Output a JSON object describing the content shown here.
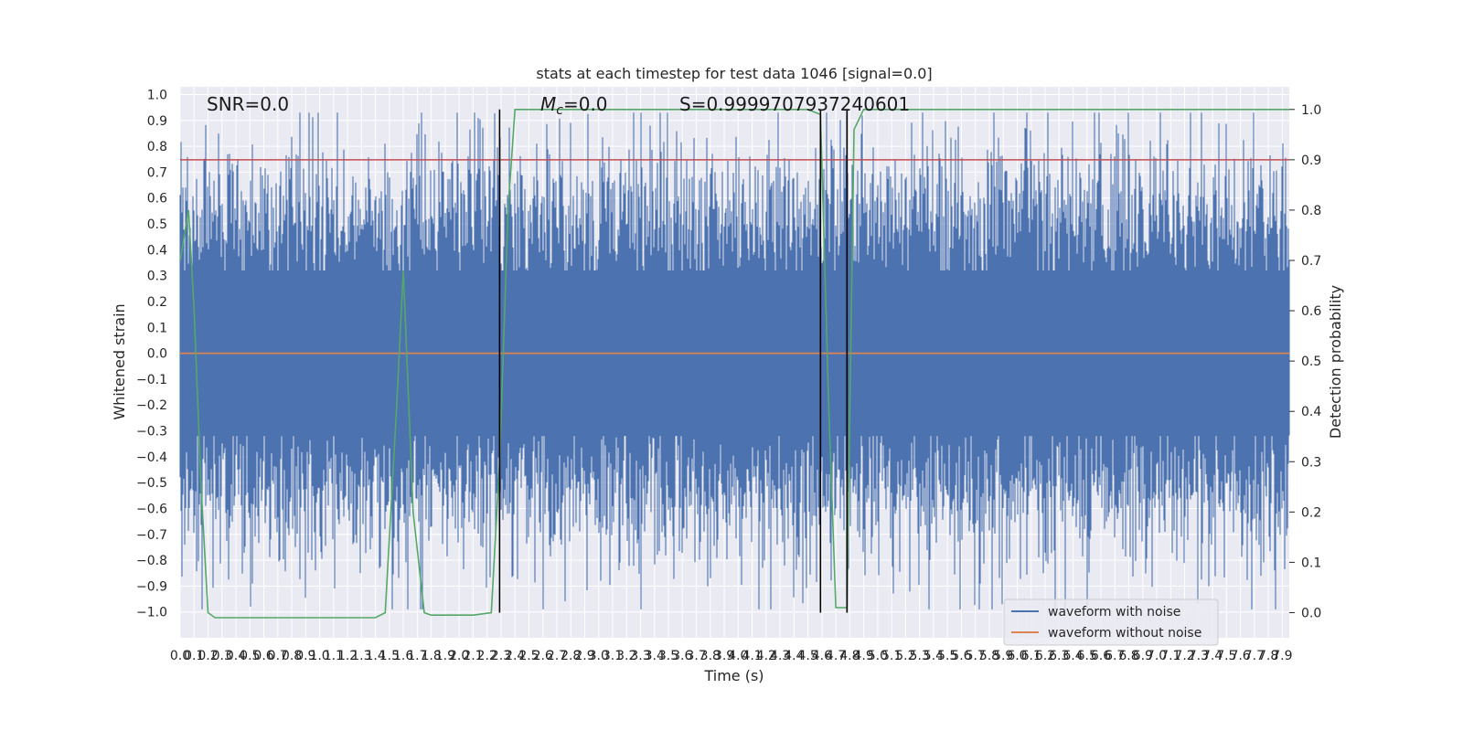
{
  "chart_data": {
    "type": "line",
    "title": "stats at each timestep for test data 1046 [signal=0.0]",
    "xlabel": "Time (s)",
    "ylabel": "Whitened strain",
    "y2label": "Detection probability",
    "xlim": [
      0.0,
      7.95
    ],
    "ylim": [
      -1.1,
      1.03
    ],
    "y2lim": [
      -0.05,
      1.045
    ],
    "x_ticks": [
      "0.0",
      "0.1",
      "0.2",
      "0.3",
      "0.4",
      "0.5",
      "0.6",
      "0.7",
      "0.8",
      "0.9",
      "1.0",
      "1.1",
      "1.2",
      "1.3",
      "1.4",
      "1.5",
      "1.6",
      "1.7",
      "1.8",
      "1.9",
      "2.0",
      "2.1",
      "2.2",
      "2.3",
      "2.4",
      "2.5",
      "2.6",
      "2.7",
      "2.8",
      "2.9",
      "3.0",
      "3.1",
      "3.2",
      "3.3",
      "3.4",
      "3.5",
      "3.6",
      "3.7",
      "3.8",
      "3.9",
      "4.0",
      "4.1",
      "4.2",
      "4.3",
      "4.4",
      "4.5",
      "4.6",
      "4.7",
      "4.8",
      "4.9",
      "5.0",
      "5.1",
      "5.2",
      "5.3",
      "5.4",
      "5.5",
      "5.6",
      "5.7",
      "5.8",
      "5.9",
      "6.0",
      "6.1",
      "6.2",
      "6.3",
      "6.4",
      "6.5",
      "6.6",
      "6.7",
      "6.8",
      "6.9",
      "7.0",
      "7.1",
      "7.2",
      "7.3",
      "7.4",
      "7.5",
      "7.6",
      "7.7",
      "7.8",
      "7.9"
    ],
    "y_ticks": [
      "1.0",
      "0.9",
      "0.8",
      "0.7",
      "0.6",
      "0.5",
      "0.4",
      "0.3",
      "0.2",
      "0.1",
      "0.0",
      "−0.1",
      "−0.2",
      "−0.3",
      "−0.4",
      "−0.5",
      "−0.6",
      "−0.7",
      "−0.8",
      "−0.9",
      "−1.0"
    ],
    "y2_ticks": [
      "1.0",
      "0.9",
      "0.8",
      "0.7",
      "0.6",
      "0.5",
      "0.4",
      "0.3",
      "0.2",
      "0.1",
      "0.0"
    ],
    "noise_amplitude": 0.3,
    "threshold": 0.9,
    "vlines": [
      2.29,
      4.59,
      4.78
    ],
    "detection_probability": {
      "x": [
        0.0,
        0.06,
        0.1,
        0.15,
        0.2,
        0.25,
        0.3,
        1.0,
        1.4,
        1.47,
        1.55,
        1.6,
        1.67,
        1.75,
        1.8,
        2.1,
        2.23,
        2.29,
        2.35,
        2.4,
        3.0,
        4.5,
        4.59,
        4.65,
        4.7,
        4.78,
        4.83,
        4.9,
        5.5,
        7.95
      ],
      "y": [
        0.7,
        0.8,
        0.6,
        0.25,
        0.0,
        -0.01,
        -0.01,
        -0.01,
        -0.01,
        0.0,
        0.4,
        0.68,
        0.2,
        0.0,
        -0.005,
        -0.005,
        0.0,
        0.3,
        0.8,
        1.0,
        1.0,
        1.0,
        0.99,
        0.4,
        0.01,
        0.01,
        0.96,
        1.0,
        1.0,
        1.0
      ]
    },
    "series": [
      {
        "name": "waveform with noise",
        "color": "#4c72b0"
      },
      {
        "name": "waveform without noise",
        "color": "#dd8452"
      }
    ],
    "threshold_color": "#c44e52",
    "probability_color": "#55a868",
    "vline_color": "#000000",
    "grid": true,
    "legend_position": "lower-right",
    "annotations": {
      "snr": "SNR=0.0",
      "mc_label": "M",
      "mc_sub": "c",
      "mc_value": "=0.0",
      "s": "S=0.9999707937240601"
    }
  }
}
